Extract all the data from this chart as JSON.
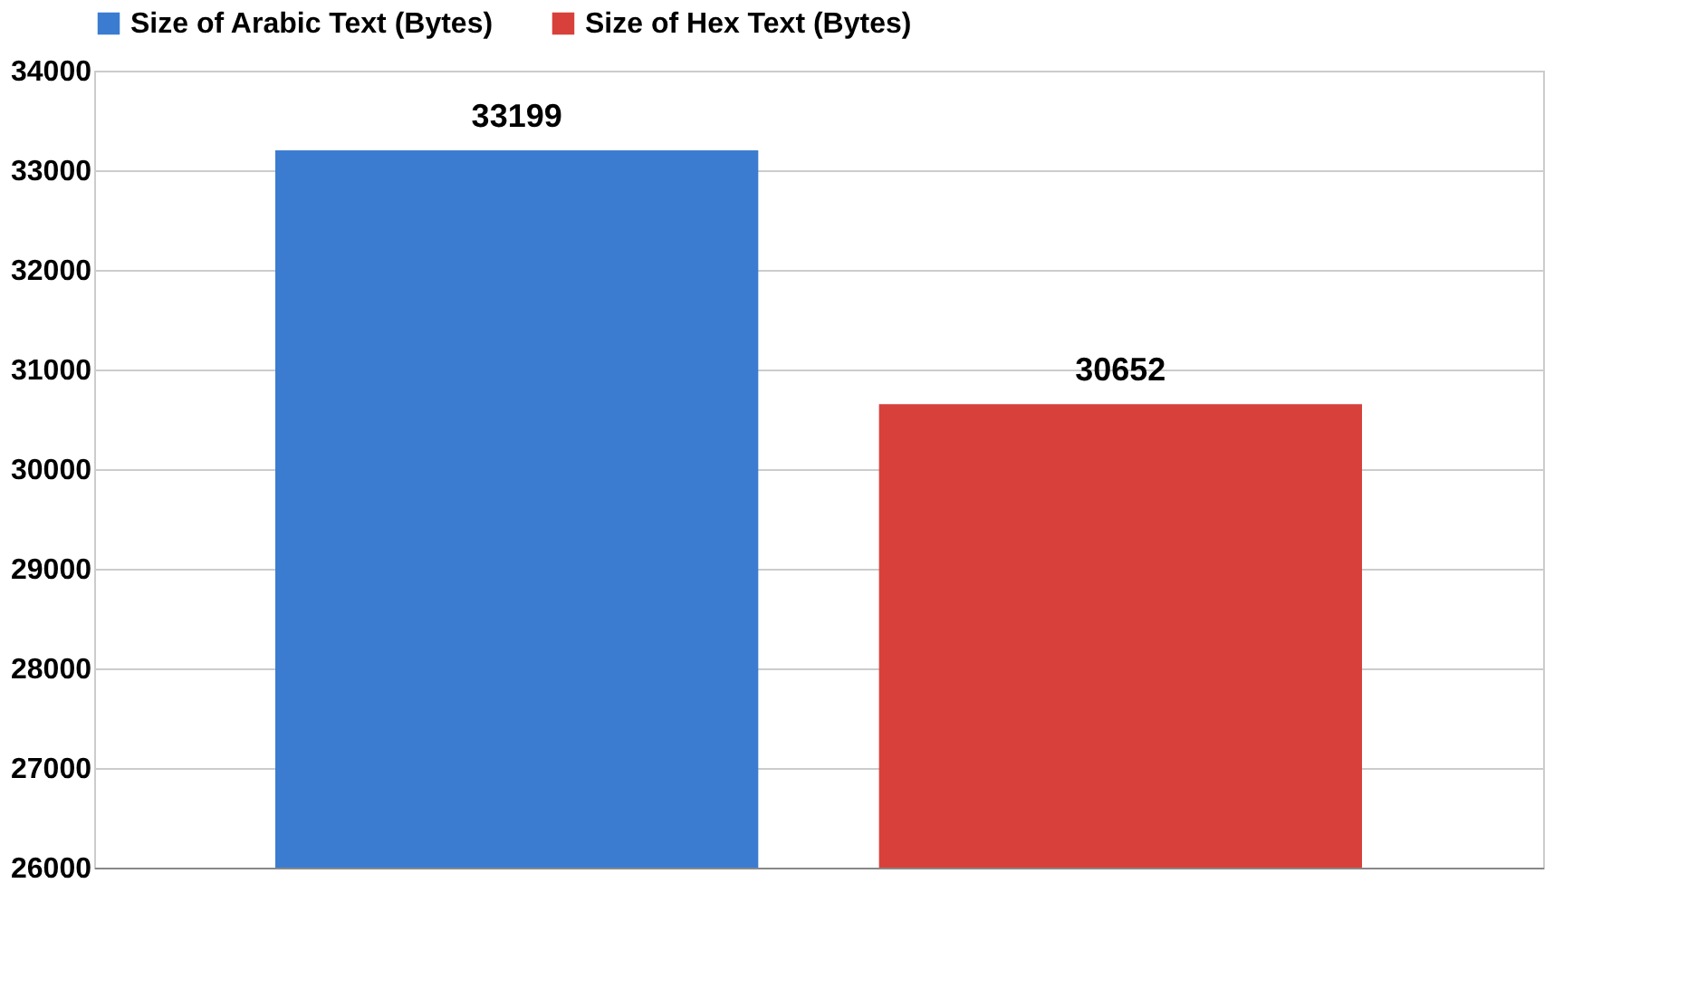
{
  "chart_data": {
    "type": "bar",
    "categories": [
      null
    ],
    "series": [
      {
        "name": "Size of Arabic Text (Bytes)",
        "color": "#3b7cd0",
        "values": [
          33199
        ]
      },
      {
        "name": "Size of Hex Text (Bytes)",
        "color": "#d8403b",
        "values": [
          30652
        ]
      }
    ],
    "ylim": [
      26000,
      34000
    ],
    "yticks": [
      26000,
      27000,
      28000,
      29000,
      30000,
      31000,
      32000,
      33000,
      34000
    ],
    "grid": "y",
    "legend": "top",
    "data_labels": true
  }
}
